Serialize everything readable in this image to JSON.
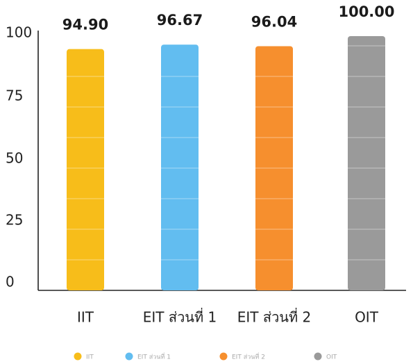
{
  "chart_data": {
    "type": "bar",
    "categories": [
      "IIT",
      "EIT ส่วนที่ 1",
      "EIT ส่วนที่ 2",
      "OIT"
    ],
    "values": [
      94.9,
      96.67,
      96.04,
      100.0
    ],
    "value_labels": [
      "94.90",
      "96.67",
      "96.04",
      "100.00"
    ],
    "ylim": [
      0,
      100
    ],
    "y_ticks": [
      0,
      25,
      50,
      75,
      100
    ],
    "grid": false,
    "legend_placement": "bottom-center",
    "legend": [
      {
        "label": "IIT",
        "color": "#f7bd1a"
      },
      {
        "label": "EIT ส่วนที่ 1",
        "color": "#62bdf0"
      },
      {
        "label": "EIT ส่วนที่ 2",
        "color": "#f68f2e"
      },
      {
        "label": "OIT",
        "color": "#9a9a9a"
      }
    ],
    "colors": [
      "#f7bd1a",
      "#62bdf0",
      "#f68f2e",
      "#9a9a9a"
    ]
  }
}
